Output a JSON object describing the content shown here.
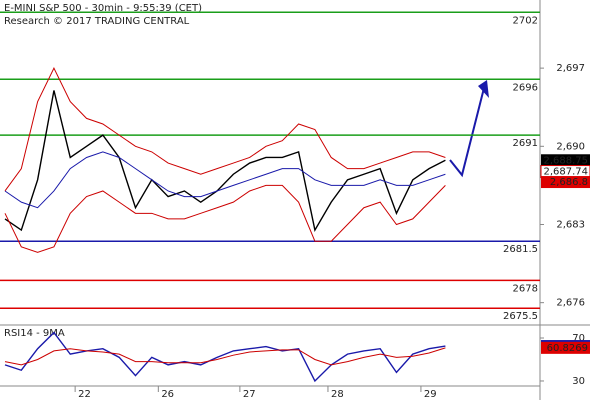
{
  "chart_data": [
    {
      "type": "line",
      "title": "E-MINI S&P 500 - 30min - 9:55:39 (CET)",
      "subtitle": "Research © 2017 TRADING CENTRAL",
      "x": [
        0,
        1,
        2,
        3,
        4,
        5,
        6,
        7,
        8,
        9,
        10,
        11,
        12,
        13,
        14,
        15,
        16,
        17,
        18,
        19,
        20,
        21,
        22,
        23,
        24,
        25,
        26,
        27
      ],
      "xlim": [
        0,
        32.8
      ],
      "xticks": [
        {
          "value": 4.3,
          "label": "22"
        },
        {
          "value": 9.4,
          "label": "26"
        },
        {
          "value": 14.4,
          "label": "27"
        },
        {
          "value": 19.8,
          "label": "28"
        },
        {
          "value": 25.5,
          "label": "29"
        }
      ],
      "ylim": [
        2674,
        2703.1
      ],
      "yticks": [
        {
          "value": 2697,
          "label": "2,697"
        },
        {
          "value": 2690,
          "label": "2,690"
        },
        {
          "value": 2683,
          "label": "2,683"
        },
        {
          "value": 2676,
          "label": "2,676"
        }
      ],
      "series": [
        {
          "color": "#000000",
          "values": [
            2683.5,
            2682.5,
            2687,
            2695,
            2689,
            2690,
            2691,
            2689,
            2684.5,
            2687,
            2685.5,
            2686,
            2685,
            2686,
            2687.5,
            2688.5,
            2689,
            2689,
            2689.5,
            2682.5,
            2685,
            2687,
            2687.5,
            2688,
            2684,
            2687,
            2688,
            2688.75
          ]
        },
        {
          "color": "#cc0000",
          "values": [
            2686,
            2688,
            2694,
            2697,
            2694,
            2692.5,
            2692,
            2691,
            2690,
            2689.5,
            2688.5,
            2688,
            2687.5,
            2688,
            2688.5,
            2689,
            2690,
            2690.5,
            2692,
            2691.5,
            2689,
            2688,
            2688,
            2688.5,
            2689,
            2689.5,
            2689.5,
            2689
          ]
        },
        {
          "color": "#cc0000",
          "values": [
            2684,
            2681,
            2680.5,
            2681,
            2684,
            2685.5,
            2686,
            2685,
            2684,
            2684,
            2683.5,
            2683.5,
            2684,
            2684.5,
            2685,
            2686,
            2686.5,
            2686.5,
            2685,
            2681.5,
            2681.5,
            2683,
            2684.5,
            2685,
            2683,
            2683.5,
            2685,
            2686.5
          ]
        },
        {
          "color": "#1a1aaa",
          "values": [
            2686,
            2685,
            2684.5,
            2686,
            2688,
            2689,
            2689.5,
            2689,
            2688,
            2687,
            2686,
            2685.5,
            2685.5,
            2686,
            2686.5,
            2687,
            2687.5,
            2688,
            2688,
            2687,
            2686.5,
            2686.5,
            2686.5,
            2687,
            2686.5,
            2686.5,
            2687,
            2687.5
          ]
        }
      ],
      "levels": [
        {
          "value": 2702,
          "color": "#1a9e1a"
        },
        {
          "value": 2696,
          "color": "#1a9e1a"
        },
        {
          "value": 2691,
          "color": "#1a9e1a"
        },
        {
          "value": 2681.5,
          "color": "#1a1aaa"
        },
        {
          "value": 2678,
          "color": "#dd0000"
        },
        {
          "value": 2675.5,
          "color": "#dd0000"
        }
      ],
      "price_tags": [
        {
          "value": 2688.75,
          "label": "2,688.75",
          "color": "#000000"
        },
        {
          "value": 2687.74,
          "label": "2,687.74",
          "color": "#ffffff"
        },
        {
          "value": 2686.8,
          "label": "2,686.8",
          "color": "#dd0000"
        }
      ]
    },
    {
      "type": "line",
      "title": "RSI14 - 9MA",
      "x": [
        0,
        1,
        2,
        3,
        4,
        5,
        6,
        7,
        8,
        9,
        10,
        11,
        12,
        13,
        14,
        15,
        16,
        17,
        18,
        19,
        20,
        21,
        22,
        23,
        24,
        25,
        26,
        27
      ],
      "xlim": [
        0,
        32.8
      ],
      "ylim": [
        12.3,
        79.3
      ],
      "yticks": [
        70,
        30
      ],
      "series": [
        {
          "color": "#1a1aaa",
          "values": [
            45,
            40,
            60,
            75,
            55,
            58,
            60,
            52,
            35,
            52,
            45,
            48,
            45,
            52,
            58,
            60,
            62,
            58,
            60,
            30,
            45,
            55,
            58,
            60,
            38,
            55,
            60,
            62.5114
          ]
        },
        {
          "color": "#cc0000",
          "values": [
            48,
            45,
            50,
            58,
            60,
            58,
            57,
            55,
            48,
            48,
            47,
            47,
            47,
            50,
            54,
            57,
            58,
            59,
            59,
            50,
            45,
            48,
            52,
            55,
            52,
            53,
            56,
            60.8269
          ]
        }
      ],
      "price_tags": [
        {
          "value": 62.5114,
          "label": "62.5114",
          "color": "#1a1aaa"
        },
        {
          "value": 60.8269,
          "label": "60.8269",
          "color": "#dd0000"
        }
      ]
    }
  ]
}
